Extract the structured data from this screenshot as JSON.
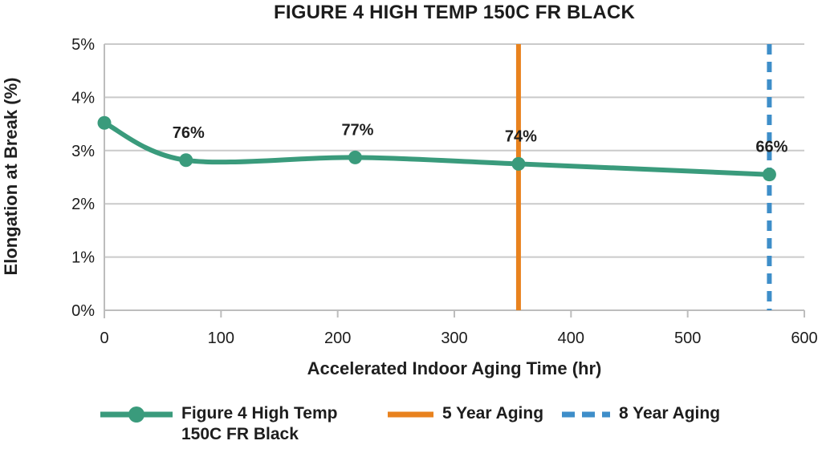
{
  "chart_data": {
    "type": "line",
    "title": "FIGURE 4 HIGH TEMP 150C FR BLACK",
    "xlabel": "Accelerated Indoor Aging Time (hr)",
    "ylabel": "Elongation at Break (%)",
    "xlim": [
      0,
      600
    ],
    "ylim": [
      0,
      5
    ],
    "xticks": [
      0,
      100,
      200,
      300,
      400,
      500,
      600
    ],
    "yticks": [
      0,
      1,
      2,
      3,
      4,
      5
    ],
    "ytick_labels": [
      "0%",
      "1%",
      "2%",
      "3%",
      "4%",
      "5%"
    ],
    "grid": "horizontal",
    "series": [
      {
        "name": "Figure 4 High Temp 150C FR Black",
        "color": "#3A9B7C",
        "x": [
          0,
          70,
          215,
          355,
          570
        ],
        "y": [
          3.52,
          2.82,
          2.87,
          2.75,
          2.55
        ],
        "point_labels": [
          "",
          "76%",
          "77%",
          "74%",
          "66%"
        ]
      }
    ],
    "vlines": [
      {
        "name": "5 Year Aging",
        "x": 355,
        "color": "#E8821E",
        "style": "solid"
      },
      {
        "name": "8 Year Aging",
        "x": 570,
        "color": "#3E8EC9",
        "style": "dashed"
      }
    ],
    "legend": [
      {
        "label": "Figure 4 High Temp 150C FR Black",
        "color": "#3A9B7C",
        "swatch": "line-marker"
      },
      {
        "label": "5 Year Aging",
        "color": "#E8821E",
        "swatch": "solid-line"
      },
      {
        "label": "8 Year Aging",
        "color": "#3E8EC9",
        "swatch": "dashed-line"
      }
    ],
    "legend_position": "bottom",
    "colors": {
      "grid": "#CACACA",
      "axis": "#BDBDBD",
      "text": "#1C1C1C"
    }
  }
}
